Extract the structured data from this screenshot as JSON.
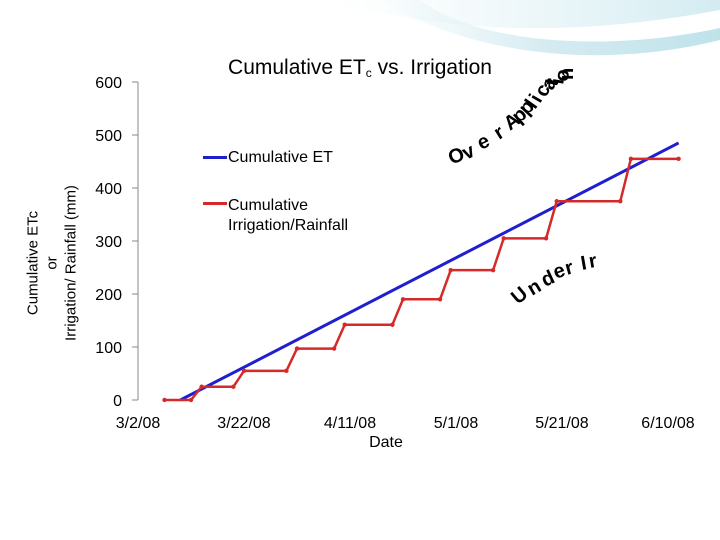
{
  "chart_data": {
    "type": "line",
    "title": "Cumulative ETc vs. Irrigation",
    "title_main": "Cumulative ET",
    "title_sub": "c",
    "title_rest": " vs. Irrigation",
    "xlabel": "Date",
    "ylabel_lines": [
      "Cumulative ETc",
      "or",
      "Irrigation/ Rainfall (mm)"
    ],
    "x_tick_labels": [
      "3/2/08",
      "3/22/08",
      "4/11/08",
      "5/1/08",
      "5/21/08",
      "6/10/08"
    ],
    "ylim": [
      0,
      600
    ],
    "y_ticks": [
      0,
      100,
      200,
      300,
      400,
      500,
      600
    ],
    "grid": false,
    "legend_position": "upper-left-inside",
    "annotations": {
      "over_application": "Over Application",
      "under_application": "Under Ir"
    },
    "series": [
      {
        "name": "Cumulative ET",
        "color": "#1f1fd0",
        "points": [
          {
            "x": "3/10/08",
            "y": 0
          },
          {
            "x": "6/12/08",
            "y": 485
          }
        ]
      },
      {
        "name": "Cumulative Irrigation/Rainfall",
        "color": "#d42a2a",
        "points": [
          {
            "x": "3/7/08",
            "y": 0
          },
          {
            "x": "3/12/08",
            "y": 0
          },
          {
            "x": "3/14/08",
            "y": 25
          },
          {
            "x": "3/20/08",
            "y": 25
          },
          {
            "x": "3/22/08",
            "y": 55
          },
          {
            "x": "3/30/08",
            "y": 55
          },
          {
            "x": "4/1/08",
            "y": 97
          },
          {
            "x": "4/8/08",
            "y": 97
          },
          {
            "x": "4/10/08",
            "y": 142
          },
          {
            "x": "4/19/08",
            "y": 142
          },
          {
            "x": "4/21/08",
            "y": 190
          },
          {
            "x": "4/28/08",
            "y": 190
          },
          {
            "x": "4/30/08",
            "y": 245
          },
          {
            "x": "5/8/08",
            "y": 245
          },
          {
            "x": "5/10/08",
            "y": 305
          },
          {
            "x": "5/18/08",
            "y": 305
          },
          {
            "x": "5/20/08",
            "y": 375
          },
          {
            "x": "6/1/08",
            "y": 375
          },
          {
            "x": "6/3/08",
            "y": 455
          },
          {
            "x": "6/12/08",
            "y": 455
          }
        ]
      }
    ]
  }
}
